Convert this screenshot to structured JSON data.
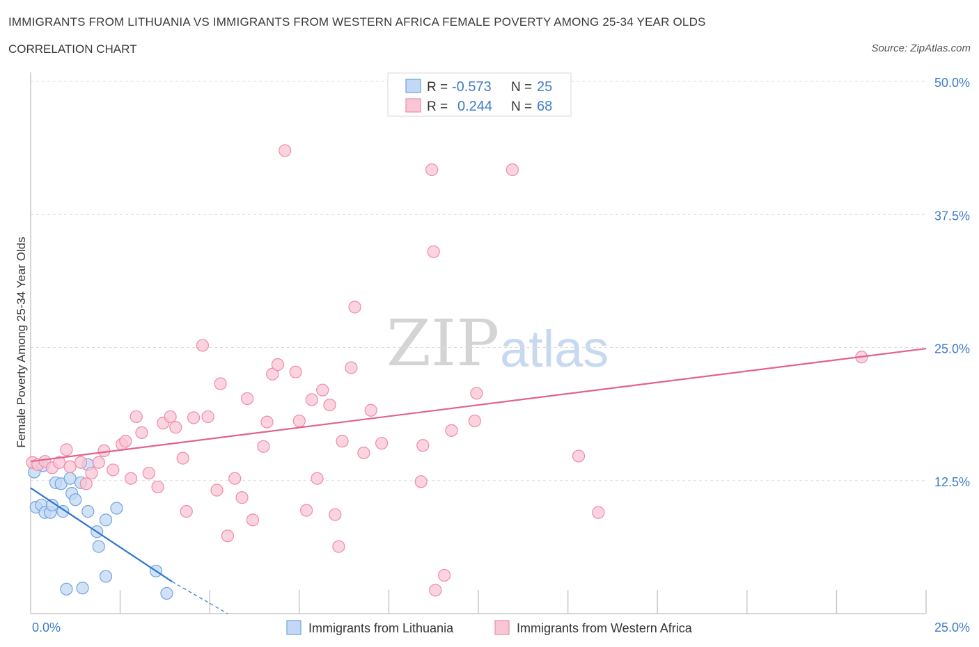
{
  "title": "IMMIGRANTS FROM LITHUANIA VS IMMIGRANTS FROM WESTERN AFRICA FEMALE POVERTY AMONG 25-34 YEAR OLDS",
  "subtitle": "CORRELATION CHART",
  "source": "Source: ZipAtlas.com",
  "watermark": {
    "zip": "ZIP",
    "atlas": "atlas"
  },
  "legend_box": {
    "rows": [
      {
        "r_label": "R =",
        "r_value": "-0.573",
        "n_label": "N =",
        "n_value": "25",
        "color": "#b7d0f2"
      },
      {
        "r_label": "R =",
        "r_value": "0.244",
        "n_label": "N =",
        "n_value": "68",
        "color": "#f7c0d0"
      }
    ]
  },
  "chart_data": {
    "type": "scatter",
    "ylabel": "Female Poverty Among 25-34 Year Olds",
    "xlim": [
      0,
      25
    ],
    "ylim": [
      0,
      50
    ],
    "x_tick_labels": [
      {
        "value": 0,
        "label": "0.0%"
      },
      {
        "value": 25,
        "label": "25.0%"
      }
    ],
    "y_tick_labels": [
      {
        "value": 12.5,
        "label": "12.5%"
      },
      {
        "value": 25,
        "label": "25.0%"
      },
      {
        "value": 37.5,
        "label": "37.5%"
      },
      {
        "value": 50,
        "label": "50.0%"
      }
    ],
    "grid": "horizontal dashed",
    "series": [
      {
        "name": "Immigrants from Lithuania",
        "color": "#6fa3e0",
        "fill": "#c2d8f4",
        "line_color": "#2f74d0",
        "trend": {
          "x_start": 0,
          "y_start": 11.8,
          "x_end": 3.95,
          "y_end": 3.0,
          "dashed_to_x": 5.5,
          "dashed_to_y": 0
        },
        "points": [
          [
            0.1,
            13.3
          ],
          [
            0.15,
            10.0
          ],
          [
            0.3,
            10.2
          ],
          [
            0.4,
            9.5
          ],
          [
            0.55,
            9.5
          ],
          [
            0.6,
            10.2
          ],
          [
            0.7,
            12.3
          ],
          [
            0.85,
            12.2
          ],
          [
            0.9,
            9.6
          ],
          [
            1.1,
            12.7
          ],
          [
            1.15,
            11.3
          ],
          [
            1.25,
            10.7
          ],
          [
            1.4,
            12.3
          ],
          [
            1.6,
            14.0
          ],
          [
            1.6,
            9.6
          ],
          [
            1.85,
            7.7
          ],
          [
            1.9,
            6.3
          ],
          [
            2.1,
            3.5
          ],
          [
            2.1,
            8.8
          ],
          [
            2.4,
            9.9
          ],
          [
            1.0,
            2.3
          ],
          [
            1.45,
            2.4
          ],
          [
            3.5,
            4.0
          ],
          [
            3.8,
            1.9
          ],
          [
            0.35,
            13.9
          ]
        ]
      },
      {
        "name": "Immigrants from Western Africa",
        "color": "#ee8aa8",
        "fill": "#f9c6d5",
        "line_color": "#e0628d",
        "trend": {
          "x_start": 0,
          "y_start": 14.3,
          "x_end": 25,
          "y_end": 24.9
        },
        "points": [
          [
            0.05,
            14.2
          ],
          [
            0.2,
            14.0
          ],
          [
            0.4,
            14.3
          ],
          [
            0.6,
            13.7
          ],
          [
            0.8,
            14.2
          ],
          [
            1.0,
            15.4
          ],
          [
            1.1,
            13.8
          ],
          [
            1.4,
            14.2
          ],
          [
            1.55,
            12.2
          ],
          [
            1.7,
            13.2
          ],
          [
            1.9,
            14.2
          ],
          [
            2.05,
            15.3
          ],
          [
            2.3,
            13.5
          ],
          [
            2.55,
            15.9
          ],
          [
            2.65,
            16.2
          ],
          [
            2.8,
            12.7
          ],
          [
            2.95,
            18.5
          ],
          [
            3.1,
            17.0
          ],
          [
            3.3,
            13.2
          ],
          [
            3.55,
            11.9
          ],
          [
            3.7,
            17.9
          ],
          [
            3.9,
            18.5
          ],
          [
            4.05,
            17.5
          ],
          [
            4.25,
            14.6
          ],
          [
            4.35,
            9.6
          ],
          [
            4.55,
            18.4
          ],
          [
            4.8,
            25.2
          ],
          [
            4.95,
            18.5
          ],
          [
            5.2,
            11.6
          ],
          [
            5.3,
            21.6
          ],
          [
            5.5,
            7.3
          ],
          [
            5.7,
            12.7
          ],
          [
            5.9,
            10.9
          ],
          [
            6.05,
            20.2
          ],
          [
            6.2,
            8.8
          ],
          [
            6.5,
            15.7
          ],
          [
            6.6,
            18.0
          ],
          [
            6.75,
            22.5
          ],
          [
            6.9,
            23.4
          ],
          [
            7.1,
            43.5
          ],
          [
            7.4,
            22.7
          ],
          [
            7.5,
            18.1
          ],
          [
            7.7,
            9.7
          ],
          [
            7.85,
            20.1
          ],
          [
            8.0,
            12.7
          ],
          [
            8.15,
            21.0
          ],
          [
            8.35,
            19.6
          ],
          [
            8.5,
            9.3
          ],
          [
            8.6,
            6.3
          ],
          [
            8.7,
            16.2
          ],
          [
            8.95,
            23.1
          ],
          [
            9.05,
            28.8
          ],
          [
            9.3,
            15.1
          ],
          [
            9.5,
            19.1
          ],
          [
            9.8,
            16.0
          ],
          [
            10.9,
            12.4
          ],
          [
            10.95,
            15.8
          ],
          [
            11.2,
            41.7
          ],
          [
            11.25,
            34.0
          ],
          [
            11.3,
            2.2
          ],
          [
            11.55,
            3.6
          ],
          [
            11.75,
            17.2
          ],
          [
            12.4,
            18.1
          ],
          [
            12.45,
            20.7
          ],
          [
            13.45,
            41.7
          ],
          [
            15.3,
            14.8
          ],
          [
            15.85,
            9.5
          ],
          [
            23.2,
            24.1
          ]
        ]
      }
    ]
  }
}
